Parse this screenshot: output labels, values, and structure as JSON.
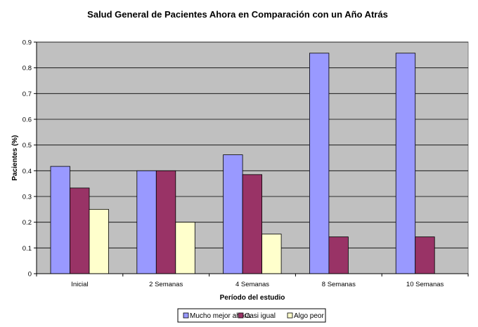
{
  "chart_data": {
    "type": "bar",
    "title": "Salud General de Pacientes Ahora en Comparación con un Año Atrás",
    "xlabel": "Período del estudio",
    "ylabel": "Pacientes (%)",
    "categories": [
      "Inicial",
      "2 Semanas",
      "4 Semanas",
      "8 Semanas",
      "10 Semanas"
    ],
    "series": [
      {
        "name": "Mucho mejor ahora",
        "color": "#9999ff",
        "values": [
          0.417,
          0.4,
          0.462,
          0.857,
          0.857
        ]
      },
      {
        "name": "Casi igual",
        "color": "#993366",
        "values": [
          0.333,
          0.4,
          0.385,
          0.143,
          0.143
        ]
      },
      {
        "name": "Algo peor",
        "color": "#ffffcc",
        "values": [
          0.25,
          0.2,
          0.154,
          0,
          0
        ]
      }
    ],
    "ylim": [
      0,
      0.9
    ],
    "yticks": [
      "0",
      "0.1",
      "0.2",
      "0.3",
      "0.4",
      "0.5",
      "0.6",
      "0.7",
      "0.8",
      "0.9"
    ],
    "plot_background": "#c0c0c0",
    "grid": true,
    "legend_position": "bottom"
  }
}
